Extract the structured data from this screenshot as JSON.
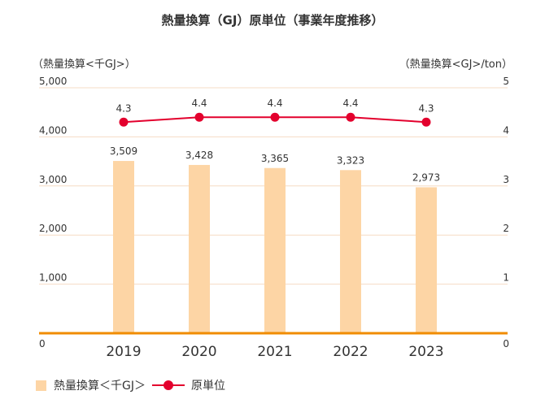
{
  "chart_data": {
    "type": "bar+line",
    "title": "熱量換算（GJ）原単位（事業年度推移）",
    "categories": [
      "2019",
      "2020",
      "2021",
      "2022",
      "2023"
    ],
    "series": [
      {
        "name": "熱量換算＜千GJ＞",
        "type": "bar",
        "axis": "left",
        "values": [
          3509,
          3428,
          3365,
          3323,
          2973
        ],
        "labels": [
          "3,509",
          "3,428",
          "3,365",
          "3,323",
          "2,973"
        ]
      },
      {
        "name": "原単位",
        "type": "line",
        "axis": "right",
        "values": [
          4.3,
          4.4,
          4.4,
          4.4,
          4.3
        ],
        "labels": [
          "4.3",
          "4.4",
          "4.4",
          "4.4",
          "4.3"
        ]
      }
    ],
    "ylabel_left": "（熱量換算<千GJ>）",
    "ylabel_right": "（熱量換算<GJ>/ton）",
    "ylim_left": [
      0,
      5000
    ],
    "ylim_right": [
      0,
      5
    ],
    "left_ticks": [
      {
        "value": 0,
        "label": "0"
      },
      {
        "value": 1000,
        "label": "1,000"
      },
      {
        "value": 2000,
        "label": "2,000"
      },
      {
        "value": 3000,
        "label": "3,000"
      },
      {
        "value": 4000,
        "label": "4,000"
      },
      {
        "value": 5000,
        "label": "5,000"
      }
    ],
    "right_ticks": [
      {
        "value": 0,
        "label": "0"
      },
      {
        "value": 1,
        "label": "1"
      },
      {
        "value": 2,
        "label": "2"
      },
      {
        "value": 3,
        "label": "3"
      },
      {
        "value": 4,
        "label": "4"
      },
      {
        "value": 5,
        "label": "5"
      }
    ],
    "grid": true,
    "legend_position": "bottom-left"
  },
  "legend": {
    "bar_label": "熱量換算＜千GJ＞",
    "line_label": "原単位"
  },
  "colors": {
    "bar": "#fdd5a5",
    "line": "#e3002d",
    "grid": "#f6dcc4",
    "baseline": "#f08c00",
    "text": "#333333"
  }
}
